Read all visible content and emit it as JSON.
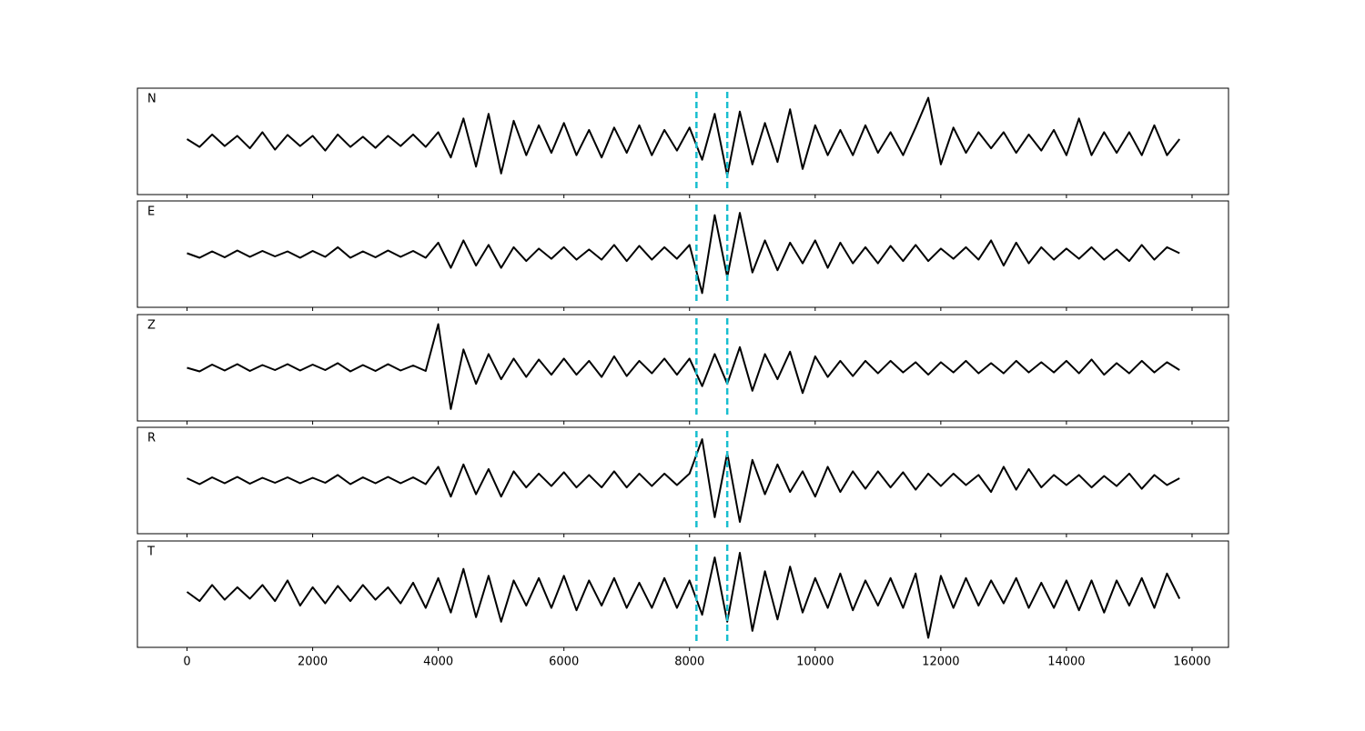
{
  "chart_data": {
    "type": "line",
    "x": [
      0,
      200,
      400,
      600,
      800,
      1000,
      1200,
      1400,
      1600,
      1800,
      2000,
      2200,
      2400,
      2600,
      2800,
      3000,
      3200,
      3400,
      3600,
      3800,
      4000,
      4200,
      4400,
      4600,
      4800,
      5000,
      5200,
      5400,
      5600,
      5800,
      6000,
      6200,
      6400,
      6600,
      6800,
      7000,
      7200,
      7400,
      7600,
      7800,
      8000,
      8200,
      8400,
      8600,
      8800,
      9000,
      9200,
      9400,
      9600,
      9800,
      10000,
      10200,
      10400,
      10600,
      10800,
      11000,
      11200,
      11400,
      11600,
      11800,
      12000,
      12200,
      12400,
      12600,
      12800,
      13000,
      13200,
      13400,
      13600,
      13800,
      14000,
      14200,
      14400,
      14600,
      14800,
      15000,
      15200,
      15400,
      15600,
      15800
    ],
    "series": [
      {
        "name": "N",
        "color": "#000000",
        "values": [
          0.05,
          -0.12,
          0.15,
          -0.1,
          0.12,
          -0.15,
          0.2,
          -0.18,
          0.14,
          -0.1,
          0.12,
          -0.2,
          0.15,
          -0.12,
          0.1,
          -0.14,
          0.12,
          -0.1,
          0.15,
          -0.12,
          0.2,
          -0.35,
          0.5,
          -0.55,
          0.6,
          -0.7,
          0.45,
          -0.3,
          0.35,
          -0.25,
          0.4,
          -0.3,
          0.25,
          -0.35,
          0.3,
          -0.25,
          0.35,
          -0.3,
          0.25,
          -0.2,
          0.3,
          -0.4,
          0.6,
          -0.75,
          0.65,
          -0.5,
          0.4,
          -0.45,
          0.7,
          -0.6,
          0.35,
          -0.3,
          0.25,
          -0.3,
          0.35,
          -0.25,
          0.2,
          -0.3,
          0.3,
          0.95,
          -0.5,
          0.3,
          -0.25,
          0.2,
          -0.15,
          0.2,
          -0.25,
          0.15,
          -0.2,
          0.25,
          -0.3,
          0.5,
          -0.3,
          0.2,
          -0.25,
          0.2,
          -0.3,
          0.35,
          -0.3,
          0.05
        ]
      },
      {
        "name": "E",
        "color": "#000000",
        "values": [
          0.02,
          -0.08,
          0.06,
          -0.07,
          0.08,
          -0.06,
          0.07,
          -0.05,
          0.06,
          -0.08,
          0.07,
          -0.06,
          0.15,
          -0.08,
          0.06,
          -0.07,
          0.08,
          -0.06,
          0.07,
          -0.08,
          0.25,
          -0.3,
          0.3,
          -0.25,
          0.2,
          -0.3,
          0.15,
          -0.15,
          0.12,
          -0.1,
          0.15,
          -0.12,
          0.1,
          -0.12,
          0.2,
          -0.15,
          0.18,
          -0.12,
          0.15,
          -0.1,
          0.2,
          -0.85,
          0.85,
          -0.5,
          0.9,
          -0.4,
          0.3,
          -0.35,
          0.25,
          -0.2,
          0.3,
          -0.3,
          0.25,
          -0.2,
          0.15,
          -0.2,
          0.18,
          -0.15,
          0.2,
          -0.15,
          0.12,
          -0.1,
          0.15,
          -0.12,
          0.3,
          -0.25,
          0.25,
          -0.2,
          0.15,
          -0.12,
          0.12,
          -0.1,
          0.15,
          -0.12,
          0.1,
          -0.15,
          0.2,
          -0.12,
          0.15,
          0.02
        ]
      },
      {
        "name": "Z",
        "color": "#000000",
        "values": [
          0.0,
          -0.08,
          0.07,
          -0.06,
          0.08,
          -0.07,
          0.06,
          -0.05,
          0.08,
          -0.06,
          0.07,
          -0.05,
          0.1,
          -0.08,
          0.06,
          -0.07,
          0.08,
          -0.06,
          0.05,
          -0.07,
          0.95,
          -0.9,
          0.4,
          -0.35,
          0.3,
          -0.25,
          0.2,
          -0.2,
          0.18,
          -0.15,
          0.2,
          -0.15,
          0.15,
          -0.2,
          0.25,
          -0.18,
          0.15,
          -0.12,
          0.2,
          -0.15,
          0.2,
          -0.4,
          0.3,
          -0.35,
          0.45,
          -0.5,
          0.3,
          -0.25,
          0.35,
          -0.55,
          0.25,
          -0.2,
          0.15,
          -0.18,
          0.15,
          -0.12,
          0.15,
          -0.1,
          0.12,
          -0.15,
          0.12,
          -0.1,
          0.15,
          -0.12,
          0.1,
          -0.12,
          0.15,
          -0.1,
          0.12,
          -0.1,
          0.15,
          -0.12,
          0.18,
          -0.15,
          0.1,
          -0.12,
          0.15,
          -0.1,
          0.12,
          -0.05
        ]
      },
      {
        "name": "R",
        "color": "#000000",
        "values": [
          0.05,
          -0.08,
          0.07,
          -0.06,
          0.08,
          -0.07,
          0.06,
          -0.05,
          0.07,
          -0.06,
          0.06,
          -0.05,
          0.12,
          -0.08,
          0.07,
          -0.06,
          0.08,
          -0.06,
          0.07,
          -0.08,
          0.3,
          -0.35,
          0.35,
          -0.3,
          0.25,
          -0.35,
          0.2,
          -0.15,
          0.15,
          -0.12,
          0.18,
          -0.15,
          0.12,
          -0.15,
          0.2,
          -0.15,
          0.15,
          -0.12,
          0.15,
          -0.1,
          0.15,
          0.9,
          -0.8,
          0.6,
          -0.9,
          0.45,
          -0.3,
          0.35,
          -0.25,
          0.2,
          -0.35,
          0.3,
          -0.25,
          0.2,
          -0.18,
          0.2,
          -0.15,
          0.18,
          -0.2,
          0.15,
          -0.12,
          0.15,
          -0.1,
          0.12,
          -0.25,
          0.3,
          -0.2,
          0.25,
          -0.15,
          0.12,
          -0.1,
          0.12,
          -0.15,
          0.1,
          -0.12,
          0.15,
          -0.18,
          0.12,
          -0.1,
          0.05
        ]
      },
      {
        "name": "T",
        "color": "#000000",
        "values": [
          0.05,
          -0.15,
          0.2,
          -0.12,
          0.15,
          -0.1,
          0.2,
          -0.15,
          0.3,
          -0.25,
          0.15,
          -0.2,
          0.18,
          -0.15,
          0.2,
          -0.12,
          0.15,
          -0.2,
          0.25,
          -0.3,
          0.35,
          -0.4,
          0.55,
          -0.5,
          0.4,
          -0.6,
          0.3,
          -0.25,
          0.35,
          -0.3,
          0.4,
          -0.35,
          0.3,
          -0.25,
          0.35,
          -0.3,
          0.25,
          -0.3,
          0.35,
          -0.3,
          0.3,
          -0.45,
          0.8,
          -0.6,
          0.9,
          -0.8,
          0.5,
          -0.55,
          0.6,
          -0.4,
          0.35,
          -0.3,
          0.45,
          -0.35,
          0.3,
          -0.25,
          0.35,
          -0.3,
          0.45,
          -0.95,
          0.4,
          -0.3,
          0.35,
          -0.25,
          0.3,
          -0.2,
          0.35,
          -0.3,
          0.25,
          -0.3,
          0.3,
          -0.35,
          0.3,
          -0.4,
          0.3,
          -0.25,
          0.35,
          -0.3,
          0.45,
          -0.1
        ]
      }
    ],
    "ylim": [
      -1,
      1
    ],
    "xlim": [
      -790,
      16580
    ],
    "xticks": [
      0,
      2000,
      4000,
      6000,
      8000,
      10000,
      12000,
      14000,
      16000
    ],
    "markers": [
      8110,
      8600
    ],
    "marker_color": "#17becf"
  }
}
